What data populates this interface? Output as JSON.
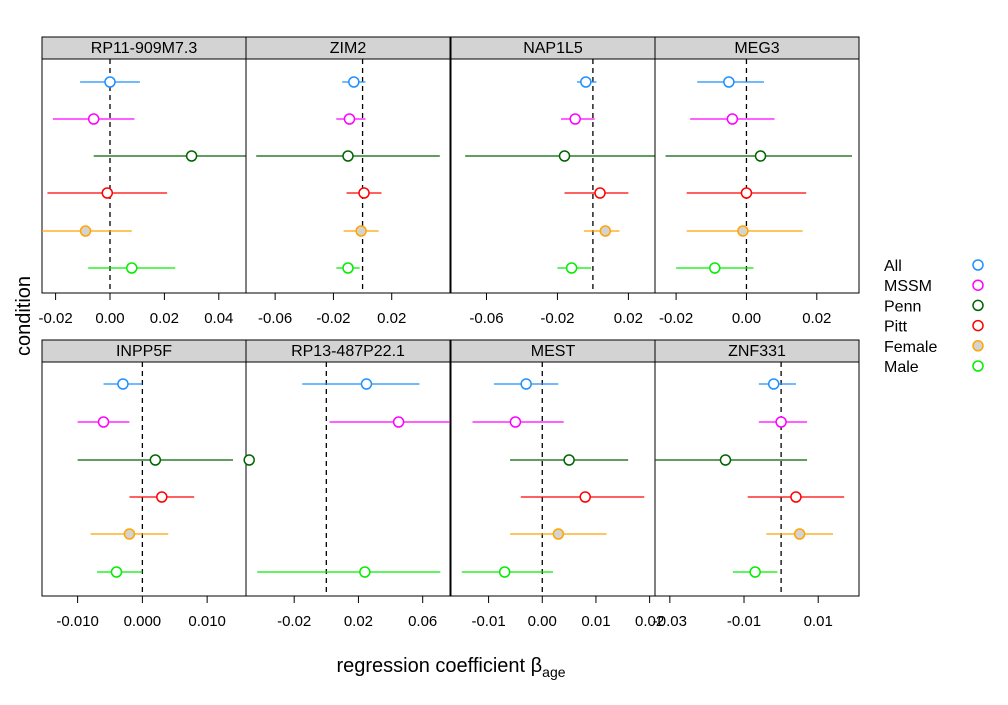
{
  "chart_data": {
    "type": "scatter",
    "subtype": "dot-and-whisker lattice (forest plot)",
    "xlabel_main": "regression coefficient β",
    "xlabel_subscript": "age",
    "ylabel": "condition",
    "reference_line_x": 0,
    "legend": {
      "placement": "right",
      "entries": [
        {
          "name": "All",
          "color": "#1E90FF"
        },
        {
          "name": "MSSM",
          "color": "#FF00FF"
        },
        {
          "name": "Penn",
          "color": "#006400"
        },
        {
          "name": "Pitt",
          "color": "#FF0000"
        },
        {
          "name": "Female",
          "color": "#FFA500"
        },
        {
          "name": "Male",
          "color": "#00EE00"
        }
      ]
    },
    "panels": [
      {
        "strip": "RP11-909M7.3",
        "xlim": [
          -0.025,
          0.05
        ],
        "ticks": [
          -0.02,
          0.0,
          0.02,
          0.04
        ],
        "tick_labels": [
          "-0.02",
          "0.00",
          "0.02",
          "0.04"
        ],
        "tick_side": "bottom",
        "points": [
          {
            "series": "All",
            "est": 0.0,
            "lo": -0.011,
            "hi": 0.011
          },
          {
            "series": "MSSM",
            "est": -0.006,
            "lo": -0.021,
            "hi": 0.009
          },
          {
            "series": "Penn",
            "est": 0.03,
            "lo": -0.006,
            "hi": 0.066
          },
          {
            "series": "Pitt",
            "est": -0.001,
            "lo": -0.023,
            "hi": 0.021
          },
          {
            "series": "Female",
            "est": -0.009,
            "lo": -0.026,
            "hi": 0.008
          },
          {
            "series": "Male",
            "est": 0.008,
            "lo": -0.008,
            "hi": 0.024
          }
        ]
      },
      {
        "strip": "ZIM2",
        "xlim": [
          -0.08,
          0.06
        ],
        "ticks": [
          -0.06,
          -0.02,
          0.02
        ],
        "tick_labels": [
          "-0.06",
          "-0.02",
          "0.02"
        ],
        "tick_side": "bottom",
        "points": [
          {
            "series": "All",
            "est": -0.006,
            "lo": -0.014,
            "hi": 0.002
          },
          {
            "series": "MSSM",
            "est": -0.009,
            "lo": -0.018,
            "hi": 0.002
          },
          {
            "series": "Penn",
            "est": -0.01,
            "lo": -0.073,
            "hi": 0.053
          },
          {
            "series": "Pitt",
            "est": 0.001,
            "lo": -0.011,
            "hi": 0.013
          },
          {
            "series": "Female",
            "est": -0.001,
            "lo": -0.013,
            "hi": 0.011
          },
          {
            "series": "Male",
            "est": -0.01,
            "lo": -0.018,
            "hi": -0.002
          }
        ]
      },
      {
        "strip": "NAP1L5",
        "xlim": [
          -0.08,
          0.035
        ],
        "ticks": [
          -0.06,
          -0.02,
          0.02
        ],
        "tick_labels": [
          "-0.06",
          "-0.02",
          "0.02"
        ],
        "tick_side": "bottom",
        "points": [
          {
            "series": "All",
            "est": -0.004,
            "lo": -0.009,
            "hi": 0.002
          },
          {
            "series": "MSSM",
            "est": -0.01,
            "lo": -0.018,
            "hi": 0.001
          },
          {
            "series": "Penn",
            "est": -0.016,
            "lo": -0.072,
            "hi": 0.04
          },
          {
            "series": "Pitt",
            "est": 0.004,
            "lo": -0.016,
            "hi": 0.02
          },
          {
            "series": "Female",
            "est": 0.007,
            "lo": -0.005,
            "hi": 0.015
          },
          {
            "series": "Male",
            "est": -0.012,
            "lo": -0.02,
            "hi": -0.001
          }
        ]
      },
      {
        "strip": "MEG3",
        "xlim": [
          -0.026,
          0.032
        ],
        "ticks": [
          -0.02,
          0.0,
          0.02
        ],
        "tick_labels": [
          "-0.02",
          "0.00",
          "0.02"
        ],
        "tick_side": "bottom",
        "points": [
          {
            "series": "All",
            "est": -0.005,
            "lo": -0.014,
            "hi": 0.005
          },
          {
            "series": "MSSM",
            "est": -0.004,
            "lo": -0.016,
            "hi": 0.008
          },
          {
            "series": "Penn",
            "est": 0.004,
            "lo": -0.023,
            "hi": 0.03
          },
          {
            "series": "Pitt",
            "est": 0.0,
            "lo": -0.017,
            "hi": 0.017
          },
          {
            "series": "Female",
            "est": -0.001,
            "lo": -0.017,
            "hi": 0.016
          },
          {
            "series": "Male",
            "est": -0.009,
            "lo": -0.02,
            "hi": 0.002
          }
        ]
      },
      {
        "strip": "INPP5F",
        "xlim": [
          -0.0155,
          0.016
        ],
        "ticks": [
          -0.01,
          0.0,
          0.01
        ],
        "tick_labels": [
          "-0.010",
          "0.000",
          "0.010"
        ],
        "tick_side": "bottom",
        "points": [
          {
            "series": "All",
            "est": -0.003,
            "lo": -0.006,
            "hi": 0.0
          },
          {
            "series": "MSSM",
            "est": -0.006,
            "lo": -0.01,
            "hi": -0.002
          },
          {
            "series": "Penn",
            "est": 0.002,
            "lo": -0.01,
            "hi": 0.014
          },
          {
            "series": "Pitt",
            "est": 0.003,
            "lo": -0.002,
            "hi": 0.008
          },
          {
            "series": "Female",
            "est": -0.002,
            "lo": -0.008,
            "hi": 0.004
          },
          {
            "series": "Male",
            "est": -0.004,
            "lo": -0.007,
            "hi": 0.0
          }
        ]
      },
      {
        "strip": "RP13-487P22.1",
        "xlim": [
          -0.05,
          0.077
        ],
        "ticks": [
          -0.02,
          0.02,
          0.06
        ],
        "tick_labels": [
          "-0.02",
          "0.02",
          "0.06"
        ],
        "tick_side": "bottom",
        "points": [
          {
            "series": "All",
            "est": 0.025,
            "lo": -0.015,
            "hi": 0.058
          },
          {
            "series": "MSSM",
            "est": 0.045,
            "lo": 0.002,
            "hi": 0.077
          },
          {
            "series": "Penn",
            "est": -0.048,
            "lo": null,
            "hi": null
          },
          {
            "series": "Pitt",
            "est": null,
            "lo": null,
            "hi": null
          },
          {
            "series": "Female",
            "est": null,
            "lo": null,
            "hi": null
          },
          {
            "series": "Male",
            "est": 0.024,
            "lo": -0.043,
            "hi": 0.071
          }
        ]
      },
      {
        "strip": "MEST",
        "xlim": [
          -0.017,
          0.021
        ],
        "ticks": [
          -0.01,
          0.0,
          0.01,
          0.02
        ],
        "tick_labels": [
          "-0.01",
          "0.00",
          "0.01",
          "0.02"
        ],
        "tick_side": "bottom",
        "points": [
          {
            "series": "All",
            "est": -0.003,
            "lo": -0.009,
            "hi": 0.003
          },
          {
            "series": "MSSM",
            "est": -0.005,
            "lo": -0.013,
            "hi": 0.004
          },
          {
            "series": "Penn",
            "est": 0.005,
            "lo": -0.006,
            "hi": 0.016
          },
          {
            "series": "Pitt",
            "est": 0.008,
            "lo": -0.004,
            "hi": 0.019
          },
          {
            "series": "Female",
            "est": 0.003,
            "lo": -0.006,
            "hi": 0.012
          },
          {
            "series": "Male",
            "est": -0.007,
            "lo": -0.015,
            "hi": 0.002
          }
        ]
      },
      {
        "strip": "ZNF331",
        "xlim": [
          -0.034,
          0.021
        ],
        "ticks": [
          -0.03,
          -0.01,
          0.01
        ],
        "tick_labels": [
          "-0.03",
          "-0.01",
          "0.01"
        ],
        "tick_side": "bottom",
        "points": [
          {
            "series": "All",
            "est": -0.002,
            "lo": -0.006,
            "hi": 0.004
          },
          {
            "series": "MSSM",
            "est": 0.0,
            "lo": -0.006,
            "hi": 0.007
          },
          {
            "series": "Penn",
            "est": -0.015,
            "lo": -0.034,
            "hi": 0.007
          },
          {
            "series": "Pitt",
            "est": 0.004,
            "lo": -0.009,
            "hi": 0.017
          },
          {
            "series": "Female",
            "est": 0.005,
            "lo": -0.004,
            "hi": 0.014
          },
          {
            "series": "Male",
            "est": -0.007,
            "lo": -0.013,
            "hi": -0.001
          }
        ]
      }
    ]
  }
}
